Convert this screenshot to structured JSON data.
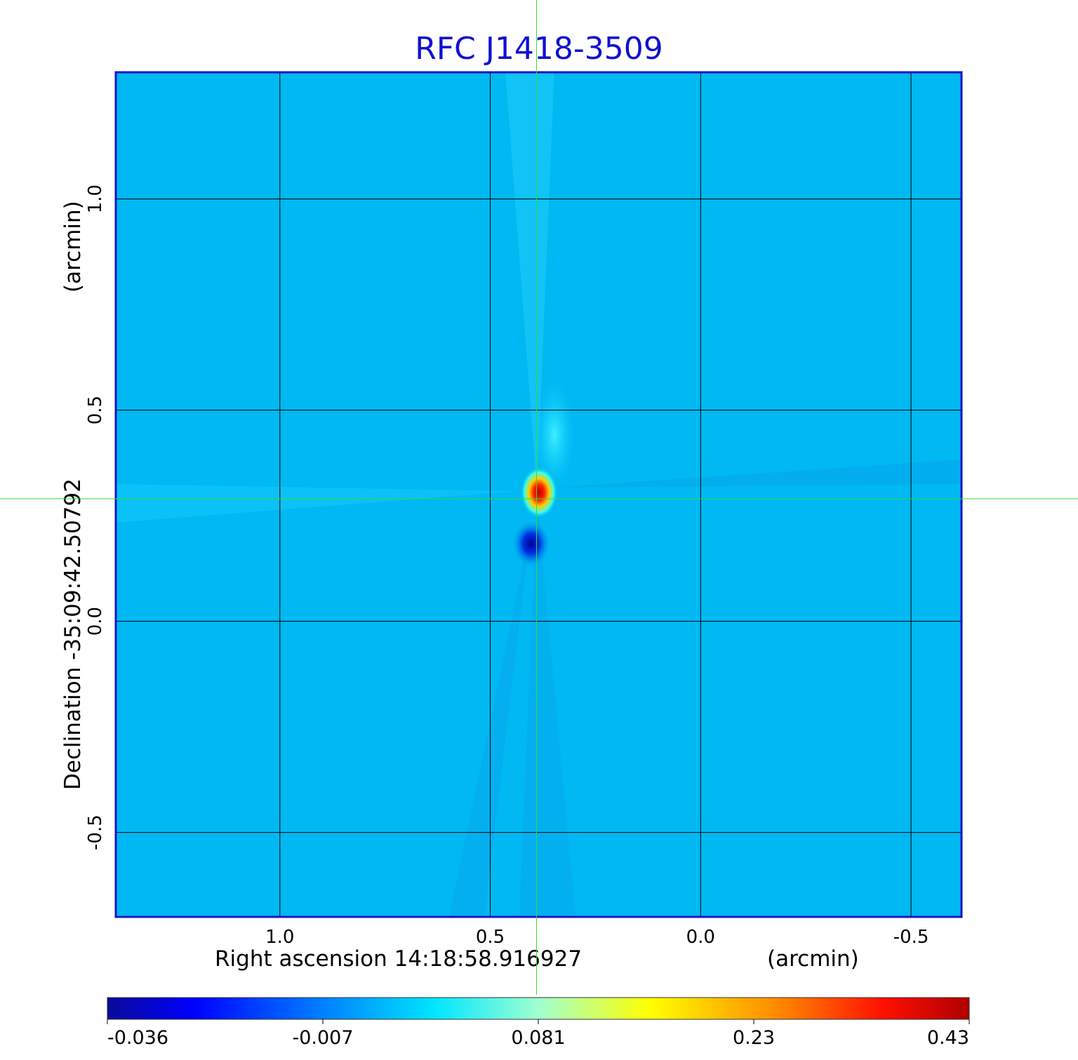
{
  "chart_data": {
    "type": "heatmap",
    "title": "RFC J1418-3509",
    "xlabel": "Right ascension  14:18:58.916927",
    "xlabel_unit": "(arcmin)",
    "ylabel": "Declination  -35:09:42.50792",
    "ylabel_unit": "(arcmin)",
    "x_ticks": [
      1.0,
      0.5,
      0.0,
      -0.5
    ],
    "x_tick_labels": [
      "1.0",
      "0.5",
      "0.0",
      "-0.5"
    ],
    "y_ticks": [
      1.0,
      0.5,
      0.0,
      -0.5
    ],
    "y_tick_labels": [
      "1.0",
      "0.5",
      "0.0",
      "-0.5"
    ],
    "xlim": [
      1.39,
      -0.62
    ],
    "ylim": [
      -0.7,
      1.3
    ],
    "x_reversed": true,
    "grid": true,
    "crosshair": {
      "x": 0.39,
      "y": 0.29,
      "color": "#33dd33"
    },
    "background_value": -0.005,
    "peak": {
      "x": 0.39,
      "y": 0.29,
      "value": 0.43
    },
    "features": [
      {
        "x": 0.39,
        "y": 0.29,
        "value": 0.43
      },
      {
        "x": 0.4,
        "y": 0.19,
        "value": -0.036
      },
      {
        "x": 0.36,
        "y": 0.45,
        "value": 0.03
      }
    ],
    "colorbar": {
      "ticks": [
        -0.036,
        -0.007,
        0.081,
        0.23,
        0.43
      ],
      "tick_labels": [
        "-0.036",
        "-0.007",
        "0.081",
        "0.23",
        "0.43"
      ],
      "colors": [
        "#0a0a9a",
        "#0050ff",
        "#00c8ff",
        "#00ffff",
        "#80ffa0",
        "#ffff00",
        "#ff9000",
        "#ff1000",
        "#b00000"
      ]
    }
  }
}
